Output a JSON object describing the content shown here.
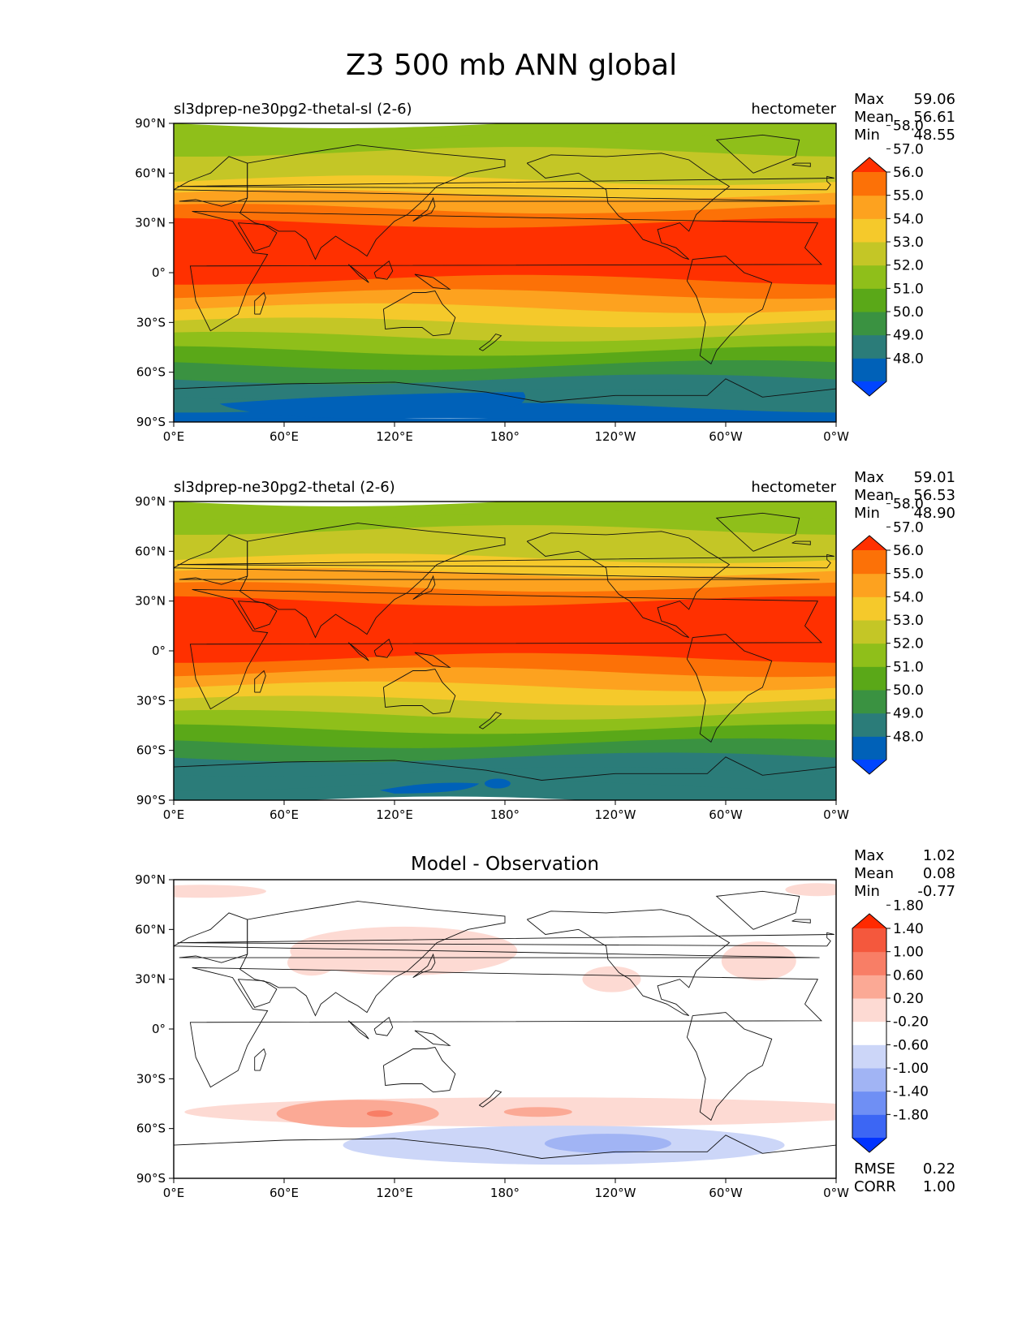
{
  "figure_title": "Z3 500 mb ANN global",
  "chart_data": [
    {
      "type": "heatmap",
      "title": "sl3dprep-ne30pg2-thetal-sl (2-6)",
      "units": "hectometer",
      "center_title": "",
      "stats": [
        {
          "label": "Max",
          "value": "59.06"
        },
        {
          "label": "Mean",
          "value": "56.61"
        },
        {
          "label": "Min",
          "value": "48.55"
        }
      ],
      "extra_stats": [],
      "colorbar": {
        "colors": [
          "#0045ff",
          "#0061b8",
          "#2b7c79",
          "#3a9241",
          "#5aa818",
          "#8fbf1a",
          "#c4c626",
          "#f5c92b",
          "#fda21f",
          "#fc7107",
          "#ff3000"
        ],
        "ticks": [
          "48.0",
          "49.0",
          "50.0",
          "51.0",
          "52.0",
          "53.0",
          "54.0",
          "55.0",
          "56.0",
          "57.0",
          "58.0"
        ],
        "extend": "both"
      },
      "lat_ticks": [
        "90°N",
        "60°N",
        "30°N",
        "0°",
        "30°S",
        "60°S",
        "90°S"
      ],
      "lon_ticks": [
        "0°E",
        "60°E",
        "120°E",
        "180°",
        "120°W",
        "60°W",
        "0°W"
      ],
      "field": {
        "kind": "levels",
        "band_colors_north_to_south": [
          "#8fbf1a",
          "#8fbf1a",
          "#c4c626",
          "#c4c626",
          "#f5c92b",
          "#fda21f",
          "#fc7107",
          "#ff3000",
          "#ff3000",
          "#ff3000",
          "#ff3000",
          "#fc7107",
          "#fda21f",
          "#f5c92b",
          "#c4c626",
          "#8fbf1a",
          "#5aa818",
          "#3a9241",
          "#2b7c79",
          "#2b7c79",
          "#0061b8"
        ]
      }
    },
    {
      "type": "heatmap",
      "title": "sl3dprep-ne30pg2-thetal (2-6)",
      "units": "hectometer",
      "center_title": "",
      "stats": [
        {
          "label": "Max",
          "value": "59.01"
        },
        {
          "label": "Mean",
          "value": "56.53"
        },
        {
          "label": "Min",
          "value": "48.90"
        }
      ],
      "extra_stats": [],
      "colorbar": {
        "colors": [
          "#0045ff",
          "#0061b8",
          "#2b7c79",
          "#3a9241",
          "#5aa818",
          "#8fbf1a",
          "#c4c626",
          "#f5c92b",
          "#fda21f",
          "#fc7107",
          "#ff3000"
        ],
        "ticks": [
          "48.0",
          "49.0",
          "50.0",
          "51.0",
          "52.0",
          "53.0",
          "54.0",
          "55.0",
          "56.0",
          "57.0",
          "58.0"
        ],
        "extend": "both"
      },
      "lat_ticks": [
        "90°N",
        "60°N",
        "30°N",
        "0°",
        "30°S",
        "60°S",
        "90°S"
      ],
      "lon_ticks": [
        "0°E",
        "60°E",
        "120°E",
        "180°",
        "120°W",
        "60°W",
        "0°W"
      ],
      "field": {
        "kind": "levels",
        "band_colors_north_to_south": [
          "#8fbf1a",
          "#8fbf1a",
          "#c4c626",
          "#c4c626",
          "#f5c92b",
          "#fda21f",
          "#fc7107",
          "#ff3000",
          "#ff3000",
          "#ff3000",
          "#ff3000",
          "#fc7107",
          "#fda21f",
          "#f5c92b",
          "#c4c626",
          "#8fbf1a",
          "#5aa818",
          "#3a9241",
          "#2b7c79",
          "#2b7c79",
          "#2b7c79"
        ]
      }
    },
    {
      "type": "heatmap",
      "title": "",
      "units": "",
      "center_title": "Model - Observation",
      "stats": [
        {
          "label": "Max",
          "value": "1.02"
        },
        {
          "label": "Mean",
          "value": "0.08"
        },
        {
          "label": "Min",
          "value": "-0.77"
        }
      ],
      "extra_stats": [
        {
          "label": "RMSE",
          "value": "0.22"
        },
        {
          "label": "CORR",
          "value": "1.00"
        }
      ],
      "colorbar": {
        "colors": [
          "#0033ff",
          "#3c66f4",
          "#6f8ff4",
          "#a1b4f4",
          "#ccd6f8",
          "#ffffff",
          "#fddad3",
          "#fba995",
          "#f87e66",
          "#f4583d",
          "#ff2a00"
        ],
        "ticks": [
          "-1.80",
          "-1.40",
          "-1.00",
          "-0.60",
          "-0.20",
          "0.20",
          "0.60",
          "1.00",
          "1.40",
          "1.80"
        ],
        "extend": "both"
      },
      "lat_ticks": [
        "90°N",
        "60°N",
        "30°N",
        "0°",
        "30°S",
        "60°S",
        "90°S"
      ],
      "lon_ticks": [
        "0°E",
        "60°E",
        "120°E",
        "180°",
        "120°W",
        "60°W",
        "0°W"
      ],
      "field": {
        "kind": "difference",
        "background": "#ffffff"
      }
    }
  ]
}
